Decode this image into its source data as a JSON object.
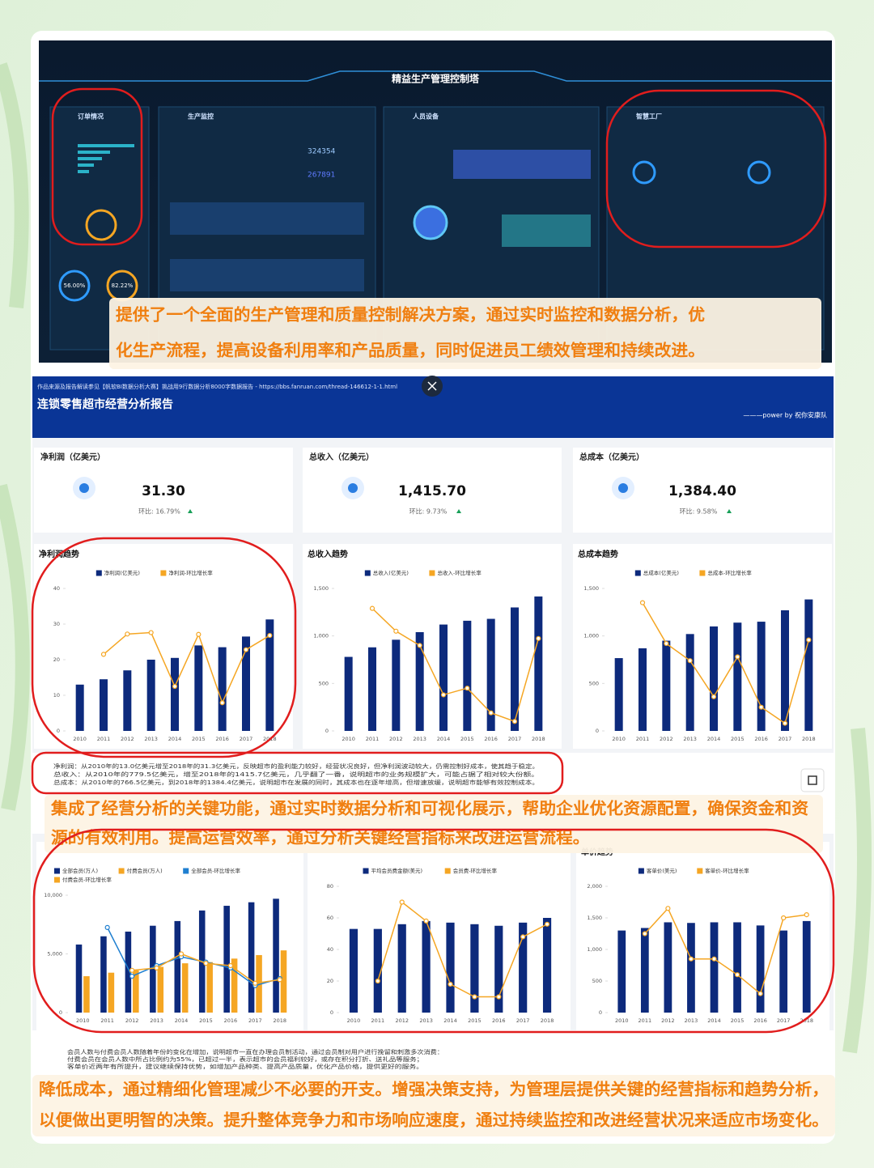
{
  "dashboard": {
    "title": "精益生产管理控制塔",
    "panels": [
      "订单情况",
      "生产监控",
      "人员设备",
      "智慧工厂"
    ],
    "figures": [
      "324354",
      "267891",
      "56.00%",
      "82.22%"
    ]
  },
  "captions": [
    [
      "提供了一个全面的生产管理和质量控制解决方案，通过实时监控和数据分析，优",
      "化生产流程，提高设备利用率和产品质量，同时促进员工绩效管理和持续改进。"
    ],
    [
      "集成了经营分析的关键功能，通过实时数据分析和可视化展示，帮助企业优化资源配置，确保资金和资",
      "源的有效利用。提高运营效率，通过分析关键经营指标来改进运营流程。"
    ],
    [
      "降低成本，通过精细化管理减少不必要的开支。增强决策支持，为管理层提供关键的经营指标和趋势分析，",
      "以便做出更明智的决策。提升整体竞争力和市场响应速度，通过持续监控和改进经营状况来适应市场变化。"
    ]
  ],
  "report": {
    "source": "作品来源及报告解读参见【帆软BI数据分析大赛】挑战用9行数据分析8000字数据报告 - https://bbs.fanruan.com/thread-146612-1-1.html",
    "title": "连锁零售超市经营分析报告",
    "credit": "———power by 祝你安康队",
    "kpis": [
      {
        "label": "净利润（亿美元）",
        "value": "31.30",
        "change": "环比: 16.79%"
      },
      {
        "label": "总收入（亿美元）",
        "value": "1,415.70",
        "change": "环比: 9.73%"
      },
      {
        "label": "总成本（亿美元）",
        "value": "1,384.40",
        "change": "环比: 9.58%"
      }
    ],
    "notes": [
      "净利润：从2010年的13.0亿美元增至2018年的31.3亿美元，反映超市的盈利能力较好，经营状况良好，但净利润波动较大，仍需控制好成本，使其趋于稳定。",
      "总收入：从2010年的779.5亿美元，增至2018年的1415.7亿美元，几乎翻了一番，说明超市的业务规模扩大，可能占据了相对较大份额。",
      "总成本：从2010年的766.5亿美元，到2018年的1384.4亿美元，说明超市在发展的同时，其成本也在逐年增高，但增速放缓，说明超市能够有效控制成本。"
    ],
    "member_notes": [
      "会员人数与付费会员人数随着年份的变化在增加，说明超市一直在办理会员制活动，通过会员制对用户进行挽留和刺激多次消费：",
      "付费会员在会员人数中所占比例约为55%，已超过一半，表示超市的会员福利较好，或存在积分打折、送礼品等服务；",
      "客单价近两年有所提升，建议继续保持优势，如增加产品种类、提高产品质量，优化产品价格，提供更好的服务。"
    ]
  },
  "chart_data": [
    {
      "type": "combo",
      "title": "净利润趋势",
      "categories": [
        "2010",
        "2011",
        "2012",
        "2013",
        "2014",
        "2015",
        "2016",
        "2017",
        "2018"
      ],
      "series": [
        {
          "name": "净利润(亿美元)",
          "color": "#0d2a7c",
          "values": [
            13.0,
            14.5,
            17,
            20,
            20.5,
            24,
            23.5,
            26.5,
            31.3
          ]
        },
        {
          "name": "净利润-环比增长率",
          "color": "#f5a623",
          "axis": "y2",
          "values": [
            null,
            11.5,
            17.2,
            17.6,
            2.5,
            17.1,
            -2.1,
            12.8,
            16.8
          ]
        }
      ],
      "ylim": [
        0,
        40
      ],
      "yticks": [
        0,
        10,
        20,
        30,
        40
      ],
      "y2lim": [
        -10,
        30
      ]
    },
    {
      "type": "combo",
      "title": "总收入趋势",
      "categories": [
        "2010",
        "2011",
        "2012",
        "2013",
        "2014",
        "2015",
        "2016",
        "2017",
        "2018"
      ],
      "series": [
        {
          "name": "总收入(亿美元)",
          "color": "#0d2a7c",
          "values": [
            779.5,
            880,
            960,
            1040,
            1120,
            1160,
            1180,
            1300,
            1415.7
          ]
        },
        {
          "name": "总收入-环比增长率",
          "color": "#f5a623",
          "axis": "y2",
          "values": [
            null,
            12.9,
            10.5,
            9.0,
            3.8,
            4.5,
            1.9,
            1.0,
            9.73
          ]
        }
      ],
      "ylim": [
        0,
        1500
      ],
      "yticks": [
        0,
        500,
        {
          "value": 1000,
          "label": "1,000"
        },
        {
          "value": 1500,
          "label": "1,500"
        }
      ],
      "y2lim": [
        0,
        15
      ]
    },
    {
      "type": "combo",
      "title": "总成本趋势",
      "categories": [
        "2010",
        "2011",
        "2012",
        "2013",
        "2014",
        "2015",
        "2016",
        "2017",
        "2018"
      ],
      "series": [
        {
          "name": "总成本(亿美元)",
          "color": "#0d2a7c",
          "values": [
            766.5,
            870,
            950,
            1020,
            1100,
            1140,
            1150,
            1270,
            1384.4
          ]
        },
        {
          "name": "总成本-环比增长率",
          "color": "#f5a623",
          "axis": "y2",
          "values": [
            null,
            13.5,
            9.2,
            7.4,
            3.6,
            7.8,
            2.5,
            0.8,
            9.58
          ]
        }
      ],
      "ylim": [
        0,
        1500
      ],
      "yticks": [
        0,
        500,
        {
          "value": 1000,
          "label": "1,000"
        },
        {
          "value": 1500,
          "label": "1,500"
        }
      ],
      "y2lim": [
        0,
        15
      ]
    },
    {
      "type": "combo",
      "categories": [
        "2010",
        "2011",
        "2012",
        "2013",
        "2014",
        "2015",
        "2016",
        "2017",
        "2018"
      ],
      "series": [
        {
          "name": "全部会员(万人)",
          "color": "#0d2a7c",
          "values": [
            5800,
            6500,
            6900,
            7400,
            7800,
            8700,
            9100,
            9400,
            9700
          ]
        },
        {
          "name": "付费会员(万人)",
          "color": "#f5a623",
          "values": [
            3100,
            3400,
            3600,
            3900,
            4200,
            4300,
            4600,
            4900,
            5300
          ]
        },
        {
          "name": "全部会员-环比增长率",
          "color": "#1f7fd0",
          "axis": "y2",
          "values": [
            null,
            14.5,
            6.2,
            8.0,
            9.5,
            8.6,
            7.6,
            4.6,
            5.8
          ]
        },
        {
          "name": "付费会员-环比增长率",
          "color": "#f5a623",
          "axis": "y2",
          "values": [
            null,
            null,
            7.2,
            7.6,
            10.0,
            8.4,
            8.0,
            5.0,
            5.6
          ]
        }
      ],
      "ylim": [
        0,
        10000
      ],
      "yticks": [
        0,
        {
          "value": 5000,
          "label": "5,000"
        },
        {
          "value": 10000,
          "label": "10,000"
        }
      ],
      "y2lim": [
        0,
        20
      ]
    },
    {
      "type": "combo",
      "categories": [
        "2010",
        "2011",
        "2012",
        "2013",
        "2014",
        "2015",
        "2016",
        "2017",
        "2018"
      ],
      "series": [
        {
          "name": "平均会员费金额(美元)",
          "color": "#0d2a7c",
          "values": [
            53,
            53,
            56,
            58,
            57,
            56,
            55,
            57,
            60
          ]
        },
        {
          "name": "会员费-环比增长率",
          "color": "#f5a623",
          "axis": "y2",
          "values": [
            null,
            -5,
            7.5,
            4.5,
            -5.5,
            -7.5,
            -7.5,
            2,
            4
          ]
        }
      ],
      "ylim": [
        0,
        80
      ],
      "yticks": [
        0,
        20,
        40,
        60,
        80
      ],
      "y2lim": [
        -10,
        10
      ]
    },
    {
      "type": "combo",
      "title": "单价趋势",
      "categories": [
        "2010",
        "2011",
        "2012",
        "2013",
        "2014",
        "2015",
        "2016",
        "2017",
        "2018"
      ],
      "series": [
        {
          "name": "客单价(美元)",
          "color": "#0d2a7c",
          "values": [
            1300,
            1340,
            1430,
            1420,
            1430,
            1430,
            1380,
            1300,
            1450
          ]
        },
        {
          "name": "客单价-环比增长率",
          "color": "#f5a623",
          "axis": "y2",
          "values": [
            null,
            2.5,
            6.5,
            -1.5,
            -1.5,
            -4,
            -7,
            5,
            5.5
          ]
        }
      ],
      "ylim": [
        0,
        2000
      ],
      "yticks": [
        0,
        500,
        {
          "value": 1000,
          "label": "1,000"
        },
        {
          "value": 1500,
          "label": "1,500"
        },
        {
          "value": 2000,
          "label": "2,000"
        }
      ],
      "y2lim": [
        -10,
        10
      ]
    }
  ]
}
